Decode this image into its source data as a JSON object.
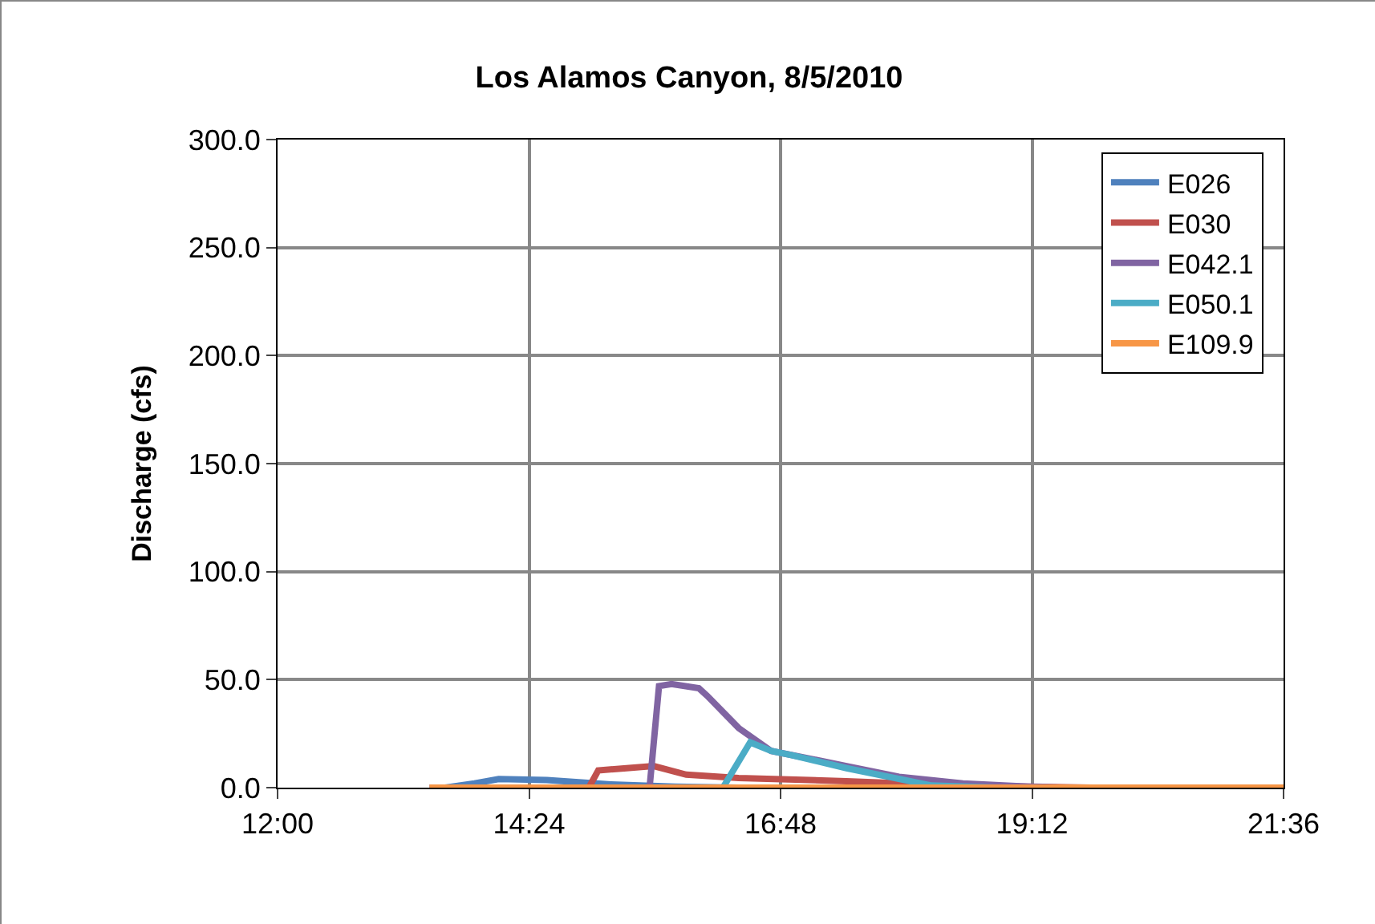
{
  "chart_data": {
    "type": "line",
    "title": "Los Alamos Canyon, 8/5/2010",
    "ylabel": "Discharge (cfs)",
    "xlim": [
      12,
      21.6
    ],
    "xticks": [
      {
        "value": 12,
        "label": "12:00"
      },
      {
        "value": 14.4,
        "label": "14:24"
      },
      {
        "value": 16.8,
        "label": "16:48"
      },
      {
        "value": 19.2,
        "label": "19:12"
      },
      {
        "value": 21.6,
        "label": "21:36"
      }
    ],
    "ylim": [
      0,
      300
    ],
    "yticks": [
      {
        "value": 0,
        "label": "0.0"
      },
      {
        "value": 50,
        "label": "50.0"
      },
      {
        "value": 100,
        "label": "100.0"
      },
      {
        "value": 150,
        "label": "150.0"
      },
      {
        "value": 200,
        "label": "200.0"
      },
      {
        "value": 250,
        "label": "250.0"
      },
      {
        "value": 300,
        "label": "300.0"
      }
    ],
    "grid": true,
    "legend": "top right",
    "marker": "none",
    "line_style": "solid",
    "series": [
      {
        "name": "E026",
        "color": "#4f81bd",
        "x": [
          13.6,
          13.88,
          14.11,
          14.57,
          15.18,
          15.79,
          16.4
        ],
        "values": [
          0,
          2,
          4,
          3.5,
          1.5,
          0.5,
          0
        ]
      },
      {
        "name": "E030",
        "color": "#c0504d",
        "x": [
          14.97,
          15.06,
          15.33,
          15.59,
          15.9,
          16.4,
          17.43,
          17.93,
          18.54,
          19.77
        ],
        "values": [
          0,
          8,
          9,
          10,
          6,
          4.5,
          3,
          2,
          1,
          0
        ]
      },
      {
        "name": "E042.1",
        "color": "#8064a2",
        "x": [
          13.45,
          15.55,
          15.64,
          15.76,
          16.02,
          16.1,
          16.4,
          16.71,
          17.43,
          17.93,
          18.54,
          19.15,
          19.46,
          21.6
        ],
        "values": [
          0,
          0,
          47,
          48,
          46,
          42.5,
          27.6,
          17,
          10,
          5,
          2,
          0.5,
          0,
          0
        ]
      },
      {
        "name": "E050.1",
        "color": "#4bacc6",
        "x": [
          16.25,
          16.51,
          16.71,
          16.91,
          17.43,
          18.24,
          18.85
        ],
        "values": [
          0,
          21,
          17,
          15,
          9,
          1,
          0
        ]
      },
      {
        "name": "E109.9",
        "color": "#f79646",
        "x": [
          13.45,
          21.6
        ],
        "values": [
          0,
          0
        ]
      }
    ]
  }
}
